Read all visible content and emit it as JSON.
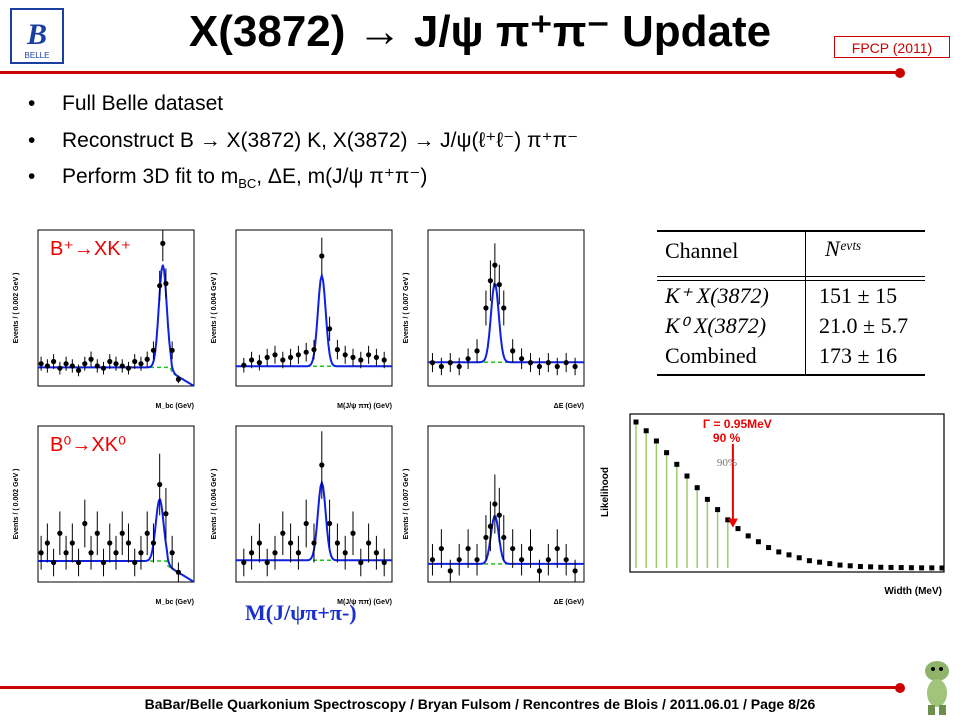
{
  "slide": {
    "title": "X(3872) → J/ψ π⁺π⁻ Update",
    "conference": "FPCP (2011)",
    "logo_text": "BELLE",
    "bullets": [
      {
        "symbol": "•",
        "text": "Full Belle dataset"
      },
      {
        "symbol": "•",
        "text": "Reconstruct B → X(3872) K, X(3872) → J/ψ(ℓ⁺ℓ⁻) π⁺π⁻"
      },
      {
        "symbol": "•",
        "text": "Perform 3D fit to m",
        "sub": "BC",
        "tail": ", ΔE, m(J/ψ π⁺π⁻)"
      }
    ],
    "footer": "BaBar/Belle Quarkonium Spectroscopy  /  Bryan Fulsom  /  Rencontres de Blois  /  2011.06.01  /  Page 8/26"
  },
  "table": {
    "headers": [
      "Channel",
      "Nᵉᵛᵗˢ"
    ],
    "rows": [
      [
        "K⁺ X(3872)",
        "151 ± 15"
      ],
      [
        "K⁰ X(3872)",
        "21.0 ± 5.7"
      ],
      [
        "Combined",
        "173 ± 16"
      ]
    ]
  },
  "row_labels": [
    "B⁺→XK⁺",
    "B⁰→XK⁰"
  ],
  "bottom_label": "M(J/ψπ+π-)",
  "chart_data": [
    {
      "type": "scatter",
      "ylabel": "Events / ( 0.002 GeV )",
      "xlabel": "M_bc (GeV)",
      "xlim": [
        5.2,
        5.3
      ],
      "ylim": [
        0,
        70
      ],
      "x": [
        5.202,
        5.206,
        5.21,
        5.214,
        5.218,
        5.222,
        5.226,
        5.23,
        5.234,
        5.238,
        5.242,
        5.246,
        5.25,
        5.254,
        5.258,
        5.262,
        5.266,
        5.27,
        5.274,
        5.278,
        5.28,
        5.282,
        5.286,
        5.29
      ],
      "y": [
        10,
        9,
        11,
        8,
        10,
        9,
        7,
        10,
        12,
        9,
        8,
        11,
        10,
        9,
        8,
        11,
        10,
        12,
        16,
        45,
        64,
        46,
        16,
        3
      ]
    },
    {
      "type": "scatter",
      "ylabel": "Events / ( 0.004 GeV )",
      "xlabel": "M(J/ψ ππ) (GeV)",
      "xlim": [
        3.76,
        3.96
      ],
      "ylim": [
        0,
        60
      ],
      "x": [
        3.77,
        3.78,
        3.79,
        3.8,
        3.81,
        3.82,
        3.83,
        3.84,
        3.85,
        3.86,
        3.87,
        3.88,
        3.89,
        3.9,
        3.91,
        3.92,
        3.93,
        3.94,
        3.95
      ],
      "y": [
        8,
        10,
        9,
        11,
        12,
        10,
        11,
        12,
        13,
        14,
        50,
        22,
        14,
        12,
        11,
        10,
        12,
        11,
        10
      ]
    },
    {
      "type": "scatter",
      "ylabel": "Events / ( 0.007 GeV )",
      "xlabel": "ΔE (GeV)",
      "xlim": [
        -0.15,
        0.2
      ],
      "ylim": [
        0,
        40
      ],
      "x": [
        -0.14,
        -0.12,
        -0.1,
        -0.08,
        -0.06,
        -0.04,
        -0.02,
        -0.01,
        0.0,
        0.01,
        0.02,
        0.04,
        0.06,
        0.08,
        0.1,
        0.12,
        0.14,
        0.16,
        0.18
      ],
      "y": [
        6,
        5,
        6,
        5,
        7,
        9,
        20,
        27,
        31,
        26,
        20,
        9,
        7,
        6,
        5,
        6,
        5,
        6,
        5
      ]
    },
    {
      "type": "scatter",
      "ylabel": "Events / ( 0.002 GeV )",
      "xlabel": "M_bc (GeV)",
      "xlim": [
        5.2,
        5.3
      ],
      "ylim": [
        0,
        16
      ],
      "x": [
        5.202,
        5.206,
        5.21,
        5.214,
        5.218,
        5.222,
        5.226,
        5.23,
        5.234,
        5.238,
        5.242,
        5.246,
        5.25,
        5.254,
        5.258,
        5.262,
        5.266,
        5.27,
        5.274,
        5.278,
        5.282,
        5.286,
        5.29
      ],
      "y": [
        3,
        4,
        2,
        5,
        3,
        4,
        2,
        6,
        3,
        5,
        2,
        4,
        3,
        5,
        4,
        2,
        3,
        5,
        4,
        10,
        7,
        3,
        1
      ]
    },
    {
      "type": "scatter",
      "ylabel": "Events / ( 0.004 GeV )",
      "xlabel": "M(J/ψ ππ) (GeV)",
      "xlim": [
        3.76,
        3.96
      ],
      "ylim": [
        0,
        16
      ],
      "x": [
        3.77,
        3.78,
        3.79,
        3.8,
        3.81,
        3.82,
        3.83,
        3.84,
        3.85,
        3.86,
        3.87,
        3.88,
        3.89,
        3.9,
        3.91,
        3.92,
        3.93,
        3.94,
        3.95
      ],
      "y": [
        2,
        3,
        4,
        2,
        3,
        5,
        4,
        3,
        6,
        4,
        12,
        6,
        4,
        3,
        5,
        2,
        4,
        3,
        2
      ]
    },
    {
      "type": "scatter",
      "ylabel": "Events / ( 0.007 GeV )",
      "xlabel": "ΔE (GeV)",
      "xlim": [
        -0.15,
        0.2
      ],
      "ylim": [
        0,
        14
      ],
      "x": [
        -0.14,
        -0.12,
        -0.1,
        -0.08,
        -0.06,
        -0.04,
        -0.02,
        -0.01,
        0.0,
        0.01,
        0.02,
        0.04,
        0.06,
        0.08,
        0.1,
        0.12,
        0.14,
        0.16,
        0.18
      ],
      "y": [
        2,
        3,
        1,
        2,
        3,
        2,
        4,
        5,
        7,
        6,
        4,
        3,
        2,
        3,
        1,
        2,
        3,
        2,
        1
      ]
    },
    {
      "type": "scatter",
      "ylabel": "Likelihood",
      "xlabel": "Width (MeV)",
      "xlim": [
        0,
        3
      ],
      "ylim": [
        0,
        1
      ],
      "annotation": "Γ = 0.95MeV",
      "annotation2": "90 %",
      "annotation3": "90%",
      "x": [
        0,
        0.1,
        0.2,
        0.3,
        0.4,
        0.5,
        0.6,
        0.7,
        0.8,
        0.9,
        1.0,
        1.1,
        1.2,
        1.3,
        1.4,
        1.5,
        1.6,
        1.7,
        1.8,
        1.9,
        2.0,
        2.1,
        2.2,
        2.3,
        2.4,
        2.5,
        2.6,
        2.7,
        2.8,
        2.9,
        3.0
      ],
      "y": [
        1.0,
        0.94,
        0.87,
        0.79,
        0.71,
        0.63,
        0.55,
        0.47,
        0.4,
        0.33,
        0.27,
        0.22,
        0.18,
        0.14,
        0.11,
        0.09,
        0.07,
        0.05,
        0.04,
        0.03,
        0.02,
        0.015,
        0.01,
        0.008,
        0.005,
        0.004,
        0.003,
        0.002,
        0.001,
        0.001,
        0.0
      ]
    }
  ]
}
